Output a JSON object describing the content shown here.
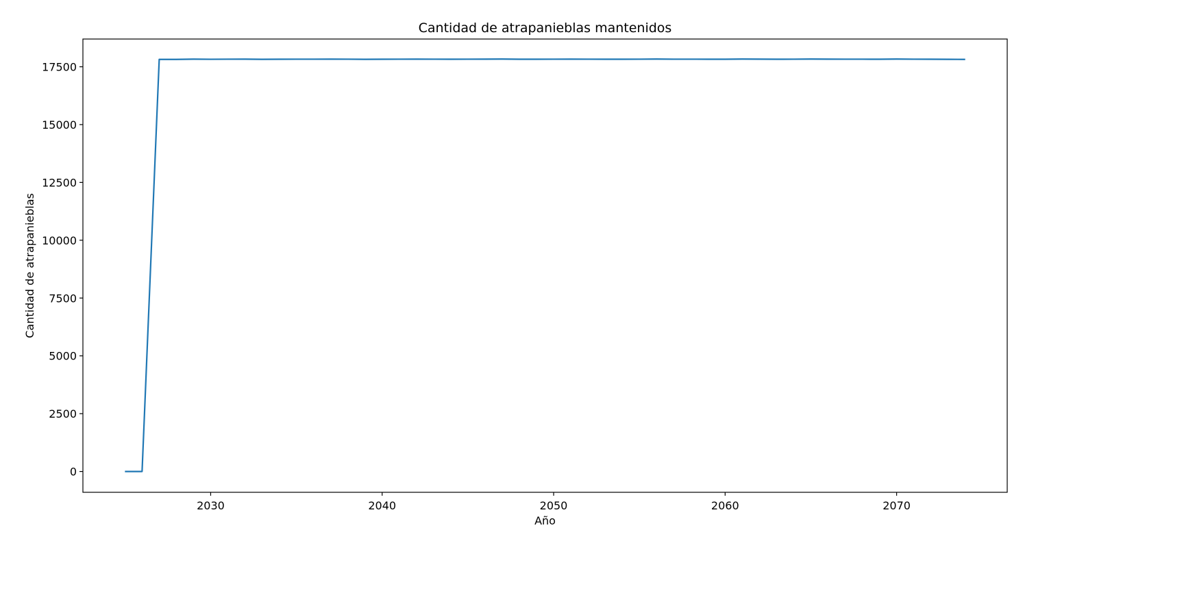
{
  "chart_data": {
    "type": "line",
    "title": "Cantidad de atrapanieblas mantenidos",
    "xlabel": "Año",
    "ylabel": "Cantidad de atrapanieblas",
    "xlim": [
      2022.55,
      2076.45
    ],
    "ylim": [
      -900,
      18700
    ],
    "xticks": [
      2030,
      2040,
      2050,
      2060,
      2070
    ],
    "yticks": [
      0,
      2500,
      5000,
      7500,
      10000,
      12500,
      15000,
      17500
    ],
    "grid": false,
    "line_color": "#1f77b4",
    "series": [
      {
        "x": [
          2025,
          2026,
          2027,
          2028,
          2029,
          2030,
          2031,
          2032,
          2033,
          2034,
          2035,
          2036,
          2037,
          2038,
          2039,
          2040,
          2041,
          2042,
          2043,
          2044,
          2045,
          2046,
          2047,
          2048,
          2049,
          2050,
          2051,
          2052,
          2053,
          2054,
          2055,
          2056,
          2057,
          2058,
          2059,
          2060,
          2061,
          2062,
          2063,
          2064,
          2065,
          2066,
          2067,
          2068,
          2069,
          2070,
          2071,
          2072,
          2073,
          2074
        ],
        "values": [
          0,
          0,
          17820,
          17820,
          17830,
          17825,
          17828,
          17830,
          17822,
          17826,
          17828,
          17829,
          17830,
          17829,
          17822,
          17826,
          17829,
          17830,
          17828,
          17827,
          17829,
          17831,
          17834,
          17826,
          17826,
          17828,
          17830,
          17829,
          17826,
          17826,
          17829,
          17833,
          17828,
          17829,
          17827,
          17826,
          17833,
          17830,
          17826,
          17829,
          17833,
          17830,
          17829,
          17829,
          17826,
          17833,
          17829,
          17826,
          17822,
          17820
        ]
      }
    ]
  }
}
